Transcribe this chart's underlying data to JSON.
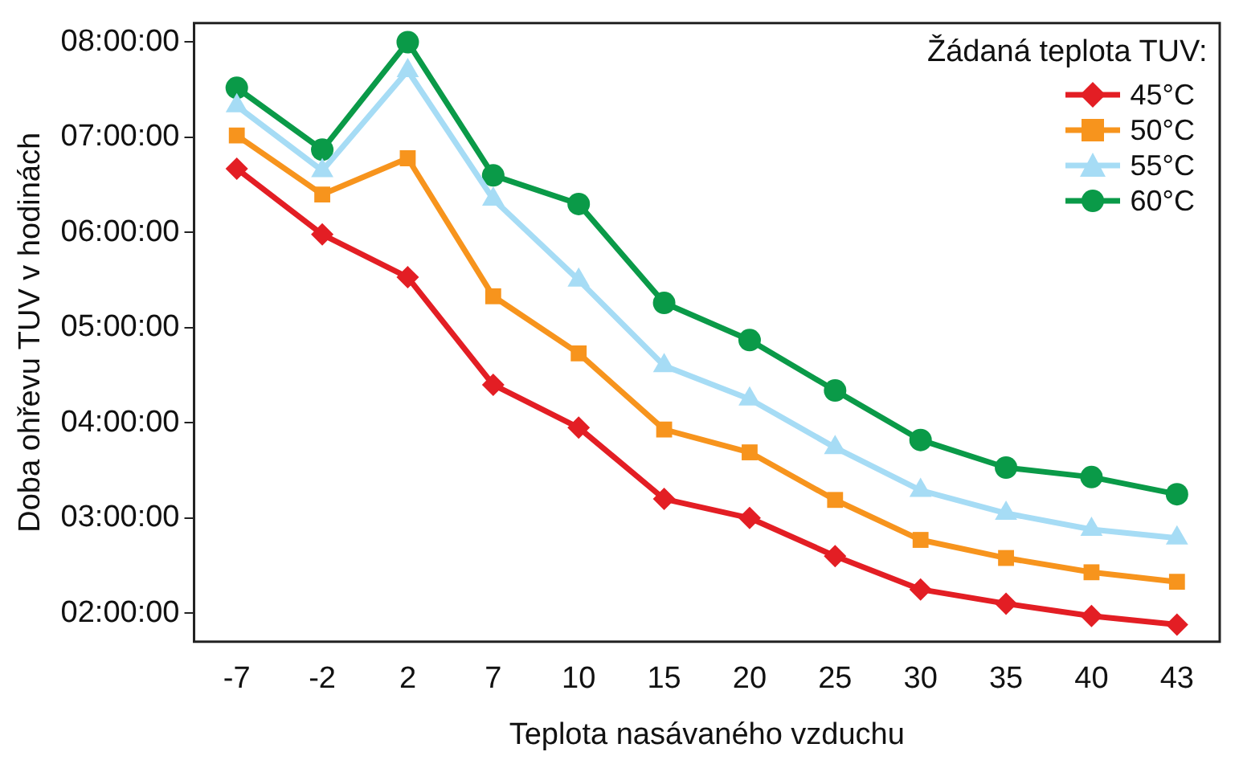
{
  "chart_data": {
    "type": "line",
    "xlabel": "Teplota nasávaného vzduchu",
    "ylabel": "Doba ohřevu TUV v hodinách",
    "legend_title": "Žádaná teplota TUV:",
    "legend": "top right",
    "grid": false,
    "line_style": "solid",
    "categories": [
      "-7",
      "-2",
      "2",
      "7",
      "10",
      "15",
      "20",
      "25",
      "30",
      "35",
      "40",
      "43"
    ],
    "ylim": [
      1.7,
      8.2
    ],
    "yticks": [
      {
        "value": 2,
        "label": "02:00:00"
      },
      {
        "value": 3,
        "label": "03:00:00"
      },
      {
        "value": 4,
        "label": "04:00:00"
      },
      {
        "value": 5,
        "label": "05:00:00"
      },
      {
        "value": 6,
        "label": "06:00:00"
      },
      {
        "value": 7,
        "label": "07:00:00"
      },
      {
        "value": 8,
        "label": "08:00:00"
      }
    ],
    "series": [
      {
        "name": "45°C",
        "color": "#e31e24",
        "marker": "diamond",
        "values": [
          6.67,
          5.98,
          5.53,
          4.4,
          3.95,
          3.2,
          3.0,
          2.6,
          2.25,
          2.1,
          1.97,
          1.88
        ]
      },
      {
        "name": "50°C",
        "color": "#f7941d",
        "marker": "square",
        "values": [
          7.02,
          6.4,
          6.78,
          5.33,
          4.73,
          3.93,
          3.69,
          3.19,
          2.77,
          2.58,
          2.43,
          2.33
        ]
      },
      {
        "name": "55°C",
        "color": "#a6dcf5",
        "marker": "triangle",
        "values": [
          7.33,
          6.65,
          7.7,
          6.35,
          5.5,
          4.6,
          4.25,
          3.74,
          3.29,
          3.05,
          2.88,
          2.79
        ]
      },
      {
        "name": "60°C",
        "color": "#0a9a48",
        "marker": "circle",
        "values": [
          7.52,
          6.87,
          8.0,
          6.6,
          6.3,
          5.26,
          4.87,
          4.34,
          3.82,
          3.53,
          3.43,
          3.25
        ]
      }
    ]
  }
}
